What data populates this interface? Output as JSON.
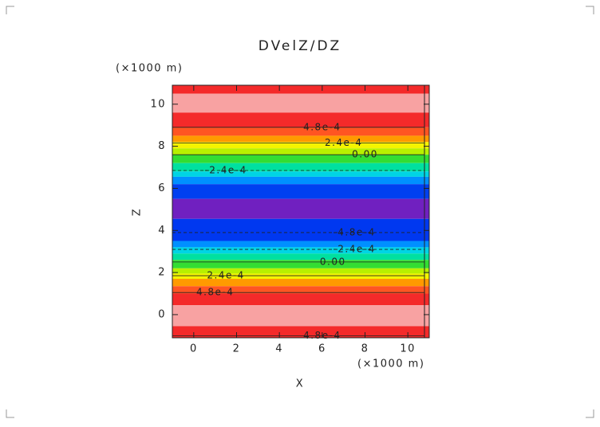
{
  "chart_data": {
    "type": "contour",
    "title": "DVelZ/DZ",
    "x_label": "X",
    "y_label": "Z",
    "x_unit": "(×1000 m)",
    "y_unit": "(×1000 m)",
    "xlim": [
      -1,
      11
    ],
    "ylim": [
      -1.1,
      10.9
    ],
    "xticks": [
      0,
      2,
      4,
      6,
      8,
      10
    ],
    "yticks": [
      0,
      2,
      4,
      6,
      8,
      10
    ],
    "bands": [
      {
        "from": 10.5,
        "to": 10.9,
        "color": "#f42a2a"
      },
      {
        "from": 9.6,
        "to": 10.5,
        "color": "#f8a2a2"
      },
      {
        "from": 8.9,
        "to": 9.6,
        "color": "#f42a2a"
      },
      {
        "from": 8.5,
        "to": 8.9,
        "color": "#ff5522"
      },
      {
        "from": 8.2,
        "to": 8.5,
        "color": "#ff9a00"
      },
      {
        "from": 7.9,
        "to": 8.2,
        "color": "#f4f400"
      },
      {
        "from": 7.6,
        "to": 7.9,
        "color": "#b8f000"
      },
      {
        "from": 7.2,
        "to": 7.6,
        "color": "#33dd33"
      },
      {
        "from": 6.8,
        "to": 7.2,
        "color": "#00e0a0"
      },
      {
        "from": 6.55,
        "to": 6.8,
        "color": "#00d4e4"
      },
      {
        "from": 6.2,
        "to": 6.55,
        "color": "#0090ff"
      },
      {
        "from": 5.5,
        "to": 6.2,
        "color": "#0040f0"
      },
      {
        "from": 4.55,
        "to": 5.5,
        "color": "#7020c0"
      },
      {
        "from": 3.5,
        "to": 4.55,
        "color": "#0038f0"
      },
      {
        "from": 3.2,
        "to": 3.5,
        "color": "#0090ff"
      },
      {
        "from": 2.9,
        "to": 3.2,
        "color": "#00d4e4"
      },
      {
        "from": 2.6,
        "to": 2.9,
        "color": "#00e0a0"
      },
      {
        "from": 2.2,
        "to": 2.6,
        "color": "#33dd33"
      },
      {
        "from": 1.95,
        "to": 2.2,
        "color": "#b8f000"
      },
      {
        "from": 1.7,
        "to": 1.95,
        "color": "#f4f400"
      },
      {
        "from": 1.35,
        "to": 1.7,
        "color": "#ff9a00"
      },
      {
        "from": 1.0,
        "to": 1.35,
        "color": "#ff5522"
      },
      {
        "from": 0.45,
        "to": 1.0,
        "color": "#f42a2a"
      },
      {
        "from": -0.55,
        "to": 0.45,
        "color": "#f8a2a2"
      },
      {
        "from": -1.1,
        "to": -0.55,
        "color": "#f42a2a"
      }
    ],
    "contours": [
      {
        "value": 0.00048,
        "label": "4.8e-4",
        "z": 8.9
      },
      {
        "value": 0.00024,
        "label": "2.4e-4",
        "z": 8.15
      },
      {
        "value": 0,
        "label": "0.00",
        "z": 7.6
      },
      {
        "value": -0.00024,
        "label": "-2.4e-4",
        "z": 6.85
      },
      {
        "value": -0.00048,
        "label": "-4.8e-4",
        "z": 3.9
      },
      {
        "value": -0.00024,
        "label": "-2.4e-4",
        "z": 3.1
      },
      {
        "value": 0,
        "label": "0.00",
        "z": 2.5
      },
      {
        "value": 0.00024,
        "label": "2.4e-4",
        "z": 1.85
      },
      {
        "value": 0.00048,
        "label": "4.8e-4",
        "z": 1.05
      },
      {
        "value": 0.00048,
        "label": "4.8e-4",
        "z": -1.0
      }
    ]
  }
}
